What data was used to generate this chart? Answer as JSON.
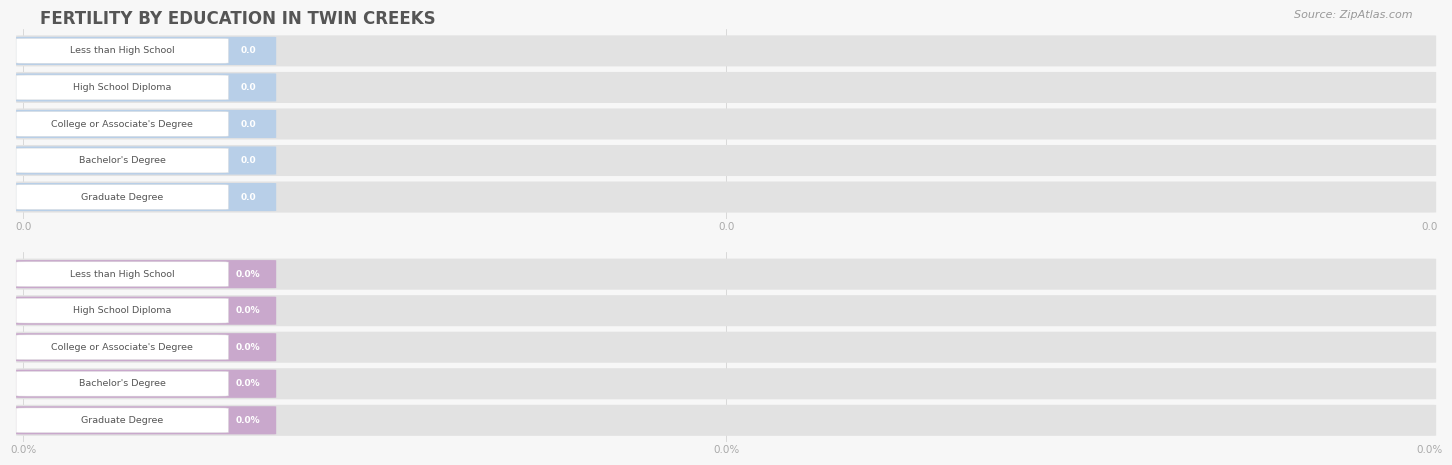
{
  "title": "FERTILITY BY EDUCATION IN TWIN CREEKS",
  "source": "Source: ZipAtlas.com",
  "categories": [
    "Less than High School",
    "High School Diploma",
    "College or Associate's Degree",
    "Bachelor's Degree",
    "Graduate Degree"
  ],
  "top_values": [
    0.0,
    0.0,
    0.0,
    0.0,
    0.0
  ],
  "bottom_values": [
    0.0,
    0.0,
    0.0,
    0.0,
    0.0
  ],
  "top_bar_color": "#b8cfe8",
  "bottom_bar_color": "#c9a8cc",
  "bar_bg_color": "#e2e2e2",
  "row_bg_color": "#f0f0f0",
  "top_label_format": "0.0",
  "bottom_label_format": "0.0%",
  "top_tick_labels": [
    "0.0",
    "0.0",
    "0.0"
  ],
  "bottom_tick_labels": [
    "0.0%",
    "0.0%",
    "0.0%"
  ],
  "bg_color": "#f7f7f7",
  "title_color": "#555555",
  "source_color": "#999999",
  "label_text_color": "#555555",
  "value_text_color": "#ffffff",
  "tick_text_color": "#aaaaaa",
  "grid_color": "#cccccc",
  "white_pill_color": "#ffffff",
  "white_pill_edge": "#dddddd"
}
